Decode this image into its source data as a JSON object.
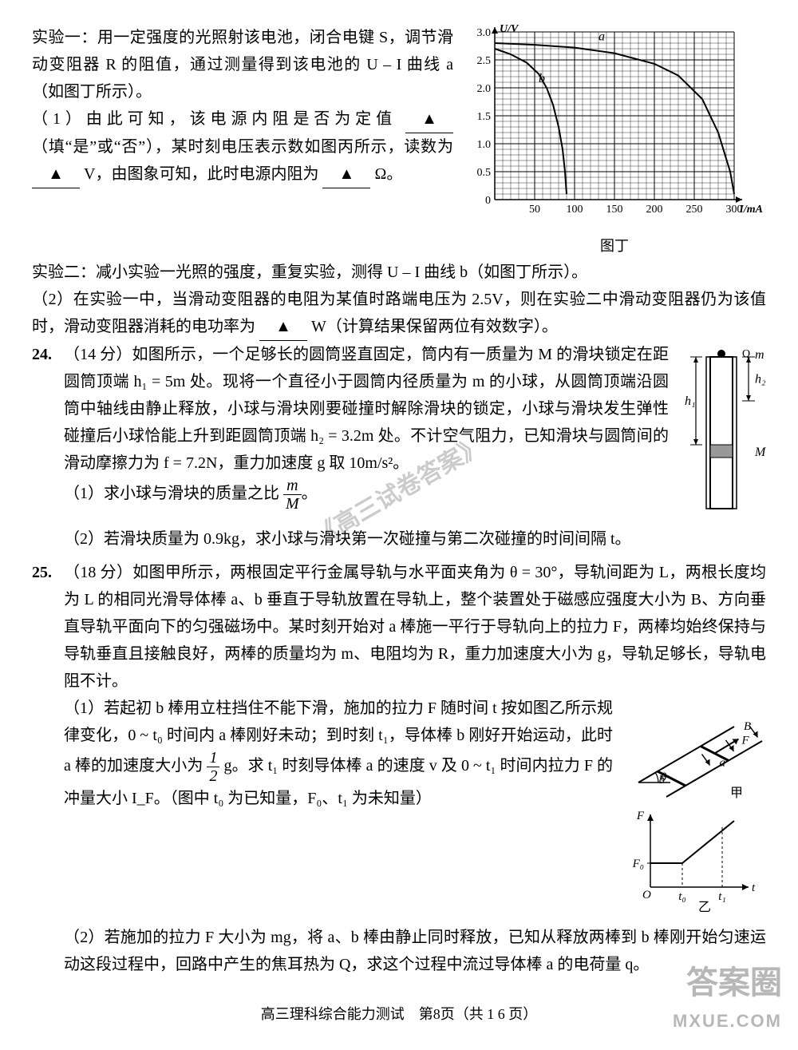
{
  "exp1": {
    "line1": "实验一：用一定强度的光照射该电池，闭合电键 S，调节滑动变阻器 R 的阻值，通过测量得到该电池的 U – I 曲线 a（如图丁所示）。",
    "q1_a": "（1）由此可知，该电源内阻是否为定值",
    "q1_b": "（填“是”或“否”），某时刻电压表示数如图丙所示，读数为",
    "q1_c": "V，由图象可知，此时电源内阻为",
    "q1_d": "Ω。",
    "exp2": "实验二：减小实验一光照的强度，重复实验，测得 U – I 曲线 b（如图丁所示）。",
    "q2_a": "（2）在实验一中，当滑动变阻器的电阻为某值时路端电压为 2.5V，则在实验二中滑动变阻器仍为该值时，滑动变阻器消耗的电功率为",
    "q2_b": "W（计算结果保留两位有效数字）。",
    "blank_tri": "▲"
  },
  "chart": {
    "type": "line",
    "title": "",
    "xlabel": "I/mA",
    "ylabel": "U/V",
    "caption": "图丁",
    "xlim": [
      0,
      300
    ],
    "ylim": [
      0,
      3.0
    ],
    "xticks": [
      0,
      50,
      100,
      150,
      200,
      250,
      300
    ],
    "yticks": [
      0,
      0.5,
      1.0,
      1.5,
      2.0,
      2.5,
      3.0
    ],
    "ytick_labels": [
      "0",
      "0.5",
      "1.0",
      "1.5",
      "2.0",
      "2.5",
      "3.0"
    ],
    "grid_color": "#000000",
    "axis_color": "#000000",
    "bg": "#ffffff",
    "minor_div": 5,
    "series": [
      {
        "name": "a",
        "points": [
          [
            0,
            2.8
          ],
          [
            50,
            2.77
          ],
          [
            100,
            2.72
          ],
          [
            150,
            2.62
          ],
          [
            200,
            2.43
          ],
          [
            230,
            2.22
          ],
          [
            260,
            1.8
          ],
          [
            280,
            1.2
          ],
          [
            295,
            0.5
          ],
          [
            300,
            0.1
          ]
        ]
      },
      {
        "name": "b",
        "points": [
          [
            0,
            2.7
          ],
          [
            20,
            2.6
          ],
          [
            40,
            2.45
          ],
          [
            55,
            2.25
          ],
          [
            65,
            2.0
          ],
          [
            73,
            1.7
          ],
          [
            80,
            1.3
          ],
          [
            85,
            0.9
          ],
          [
            88,
            0.5
          ],
          [
            90,
            0.1
          ]
        ]
      }
    ],
    "label_a": "a",
    "label_b": "b",
    "font_size": 14
  },
  "q24": {
    "num": "24.",
    "head": "（14 分）如图所示，一个足够长的圆筒竖直固定，筒内有一质量为 M 的滑块锁定在距圆筒顶端 h₁ = 5m 处。现将一个直径小于圆筒内径质量为 m 的小球，从圆筒顶端沿圆筒中轴线由静止释放，小球与滑块刚要碰撞时解除滑块的锁定，小球与滑块发生弹性碰撞后小球恰能上升到距圆筒顶端 h₂ = 3.2m 处。不计空气阻力，已知滑块与圆筒间的滑动摩擦力为 f = 7.2N，重力加速度 g 取 10m/s²。",
    "p1_a": "（1）求小球与滑块的质量之比",
    "p1_b": "。",
    "frac_top": "m",
    "frac_bot": "M",
    "p2": "（2）若滑块质量为 0.9kg，求小球与滑块第一次碰撞与第二次碰撞的时间间隔 t。",
    "fig": {
      "h1": "h₁",
      "h2": "h₂",
      "m": "m",
      "M": "M",
      "Q": "Q"
    }
  },
  "q25": {
    "num": "25.",
    "head": "（18 分）如图甲所示，两根固定平行金属导轨与水平面夹角为 θ = 30°，导轨间距为 L，两根长度均为 L 的相同光滑导体棒 a、b 垂直于导轨放置在导轨上，整个装置处于磁感应强度大小为 B、方向垂直导轨平面向下的匀强磁场中。某时刻开始对 a 棒施一平行于导轨向上的拉力 F，两棒均始终保持与导轨垂直且接触良好，两棒的质量均为 m、电阻均为 R，重力加速度大小为 g，导轨足够长，导轨电阻不计。",
    "p1_a": "（1）若起初 b 棒用立柱挡住不能下滑，施加的拉力 F 随时间 t 按如图乙所示规律变化，0 ~ t₀ 时间内 a 棒刚好未动；到时刻 t₁，导体棒 b 刚好开始运动，此时 a 棒的加速度大小为",
    "half_top": "1",
    "half_bot": "2",
    "p1_b": "g。求 t₁ 时刻导体棒 a 的速度 v 及 0 ~ t₁ 时间内拉力 F 的冲量大小 I_F。（图中 t₀ 为已知量，F₀、t₁ 为未知量）",
    "p2": "（2）若施加的拉力 F 大小为 mg，将 a、b 棒由静止同时释放，已知从释放两棒到 b 棒刚开始匀速运动这段过程中，回路中产生的焦耳热为 Q，求这个过程中流过导体棒 a 的电荷量 q。",
    "fig1": {
      "B": "B",
      "F": "F",
      "a": "a",
      "b": "b",
      "theta": "θ",
      "cap": "甲"
    },
    "fig2": {
      "F": "F",
      "F0": "F₀",
      "t0": "t₀",
      "t1": "t₁",
      "t": "t",
      "O": "O",
      "cap": "乙"
    }
  },
  "footer": "高三理科综合能力测试　第8页（共 1 6 页）",
  "watermarks": {
    "wm1": "《高三试卷答案》",
    "wm2": "高三试卷答案",
    "wm3": "答案圈",
    "site": "MXUE.COM"
  },
  "colors": {
    "text": "#000000",
    "bg": "#ffffff",
    "wm_gray": "#888888"
  }
}
